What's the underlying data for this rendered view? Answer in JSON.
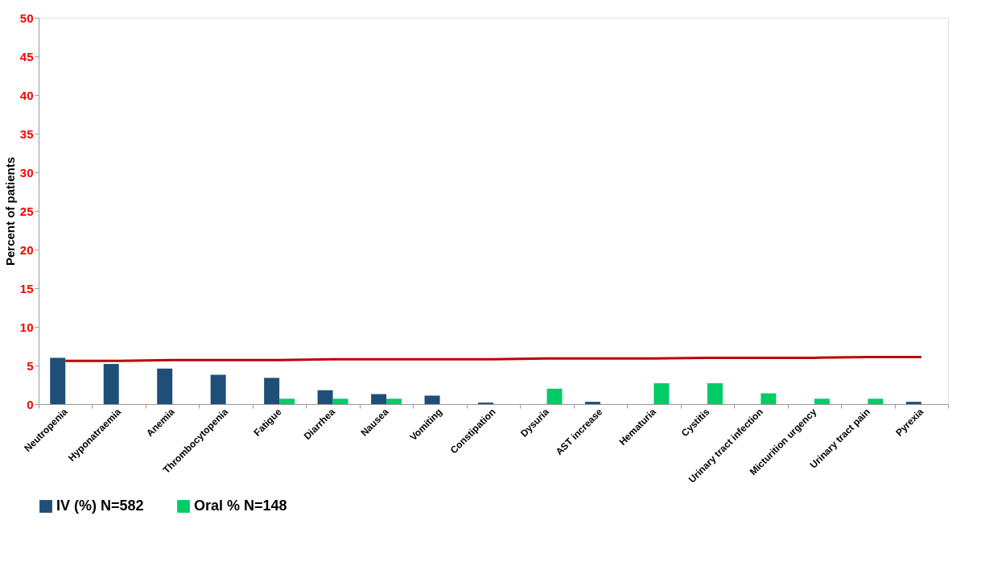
{
  "chart_data": {
    "type": "bar",
    "ylabel": "Percent of patients",
    "categories": [
      "Neutropenia",
      "Hyponatraemia",
      "Anemia",
      "Thrombocytopenia",
      "Fatigue",
      "Diarrhea",
      "Nausea",
      "Vomiting",
      "Constipation",
      "Dysuria",
      "AST increase",
      "Hematuria",
      "Cystitis",
      "Urinary tract infection",
      "Micturition urgency",
      "Urinary tract pain",
      "Pyrexia"
    ],
    "series": [
      {
        "name": "IV (%) N=582",
        "color": "#1f4e79",
        "values": [
          6.0,
          5.2,
          4.6,
          3.8,
          3.4,
          1.8,
          1.3,
          1.1,
          0.2,
          null,
          0.3,
          null,
          null,
          null,
          null,
          null,
          0.3
        ]
      },
      {
        "name": "Oral % N=148",
        "color": "#00cc66",
        "values": [
          null,
          null,
          null,
          null,
          0.7,
          0.7,
          0.7,
          null,
          null,
          2.0,
          null,
          2.7,
          2.7,
          1.4,
          0.7,
          0.7,
          null
        ]
      },
      {
        "type": "line",
        "color": "#c00000",
        "values": [
          5.6,
          5.6,
          5.7,
          5.7,
          5.7,
          5.8,
          5.8,
          5.8,
          5.8,
          5.9,
          5.9,
          5.9,
          6.0,
          6.0,
          6.0,
          6.1,
          6.1
        ]
      }
    ],
    "ylim": [
      0,
      50
    ],
    "yticks": [
      0,
      5,
      10,
      15,
      20,
      25,
      30,
      35,
      40,
      45,
      50
    ],
    "grid": false,
    "legend": "bottom"
  }
}
